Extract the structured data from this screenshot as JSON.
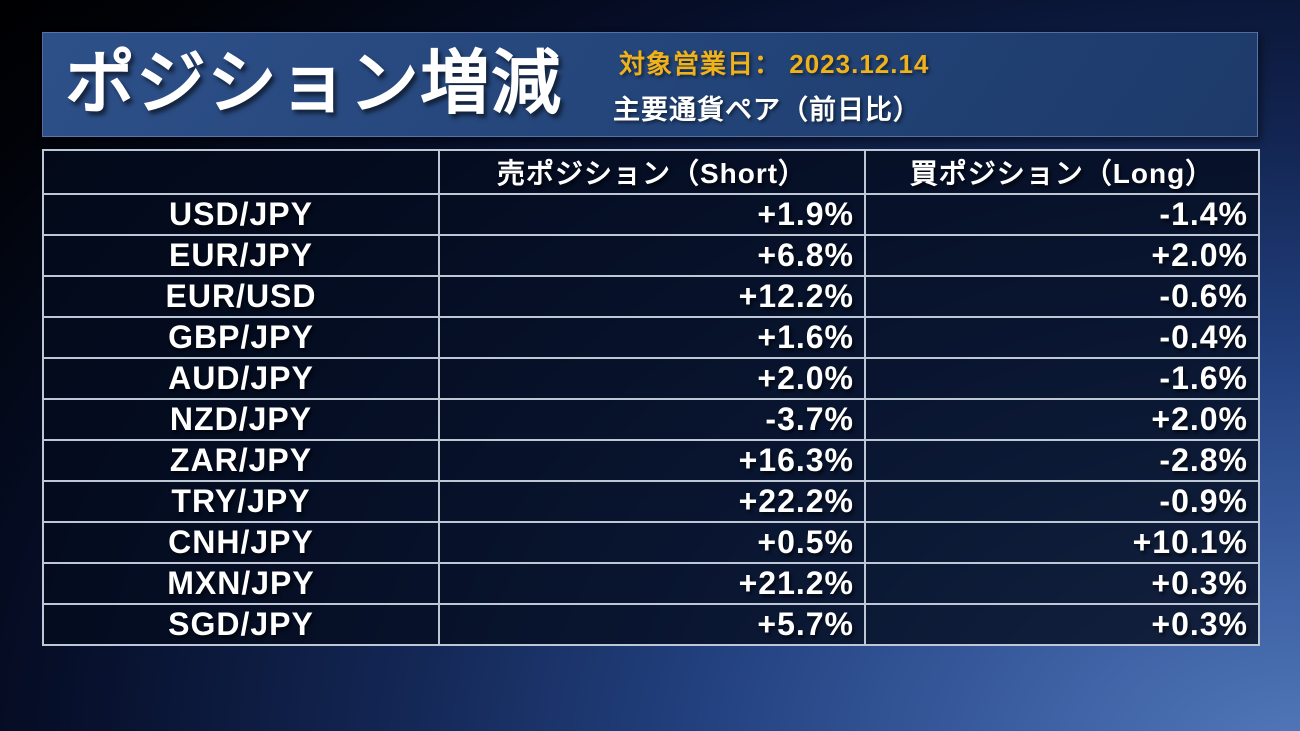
{
  "header": {
    "title": "ポジション増減",
    "business_day_label": "対象営業日：",
    "business_day_value": "2023.12.14",
    "subtitle": "主要通貨ペア（前日比）"
  },
  "table": {
    "columns": [
      "",
      "売ポジション（Short）",
      "買ポジション（Long）"
    ],
    "rows": [
      {
        "pair": "USD/JPY",
        "short": "+1.9%",
        "long": "-1.4%"
      },
      {
        "pair": "EUR/JPY",
        "short": "+6.8%",
        "long": "+2.0%"
      },
      {
        "pair": "EUR/USD",
        "short": "+12.2%",
        "long": "-0.6%"
      },
      {
        "pair": "GBP/JPY",
        "short": "+1.6%",
        "long": "-0.4%"
      },
      {
        "pair": "AUD/JPY",
        "short": "+2.0%",
        "long": "-1.6%"
      },
      {
        "pair": "NZD/JPY",
        "short": "-3.7%",
        "long": "+2.0%"
      },
      {
        "pair": "ZAR/JPY",
        "short": "+16.3%",
        "long": "-2.8%"
      },
      {
        "pair": "TRY/JPY",
        "short": "+22.2%",
        "long": "-0.9%"
      },
      {
        "pair": "CNH/JPY",
        "short": "+0.5%",
        "long": "+10.1%"
      },
      {
        "pair": "MXN/JPY",
        "short": "+21.2%",
        "long": "+0.3%"
      },
      {
        "pair": "SGD/JPY",
        "short": "+5.7%",
        "long": "+0.3%"
      }
    ]
  },
  "colors": {
    "accent_yellow": "#f0b21a",
    "banner_blue": "#234478",
    "table_border": "#bdc7d6",
    "background_bright_blue": "#4a74b5",
    "text_white": "#ffffff"
  }
}
